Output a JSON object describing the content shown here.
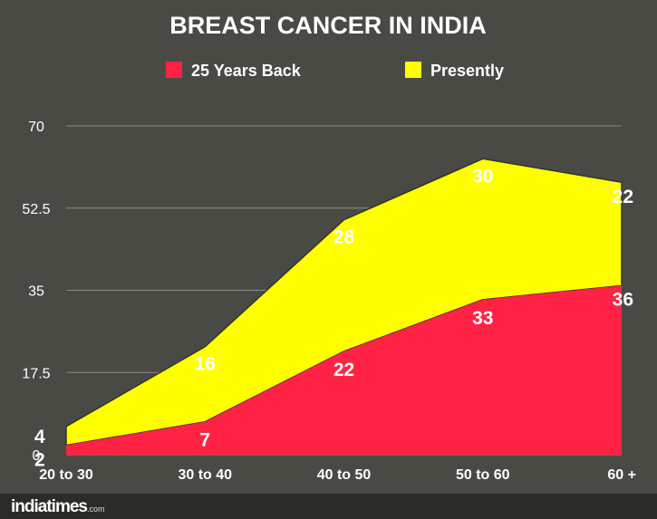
{
  "chart_data": {
    "type": "area",
    "stacked": true,
    "title": "BREAST CANCER IN INDIA",
    "categories": [
      "20 to 30",
      "30 to 40",
      "40 to 50",
      "50 to 60",
      "60 +"
    ],
    "series": [
      {
        "name": "25 Years Back",
        "color": "#ff2244",
        "values": [
          2,
          7,
          22,
          33,
          36
        ]
      },
      {
        "name": "Presently",
        "color": "#ffff00",
        "values": [
          4,
          16,
          28,
          30,
          22
        ]
      }
    ],
    "y_ticks": [
      "0",
      "17.5",
      "35",
      "52.5",
      "70"
    ],
    "ylim": [
      0,
      70
    ],
    "grid": true,
    "legend_position": "top"
  },
  "footer": {
    "brand": "indiatimes",
    "brand_suffix": ".com"
  }
}
